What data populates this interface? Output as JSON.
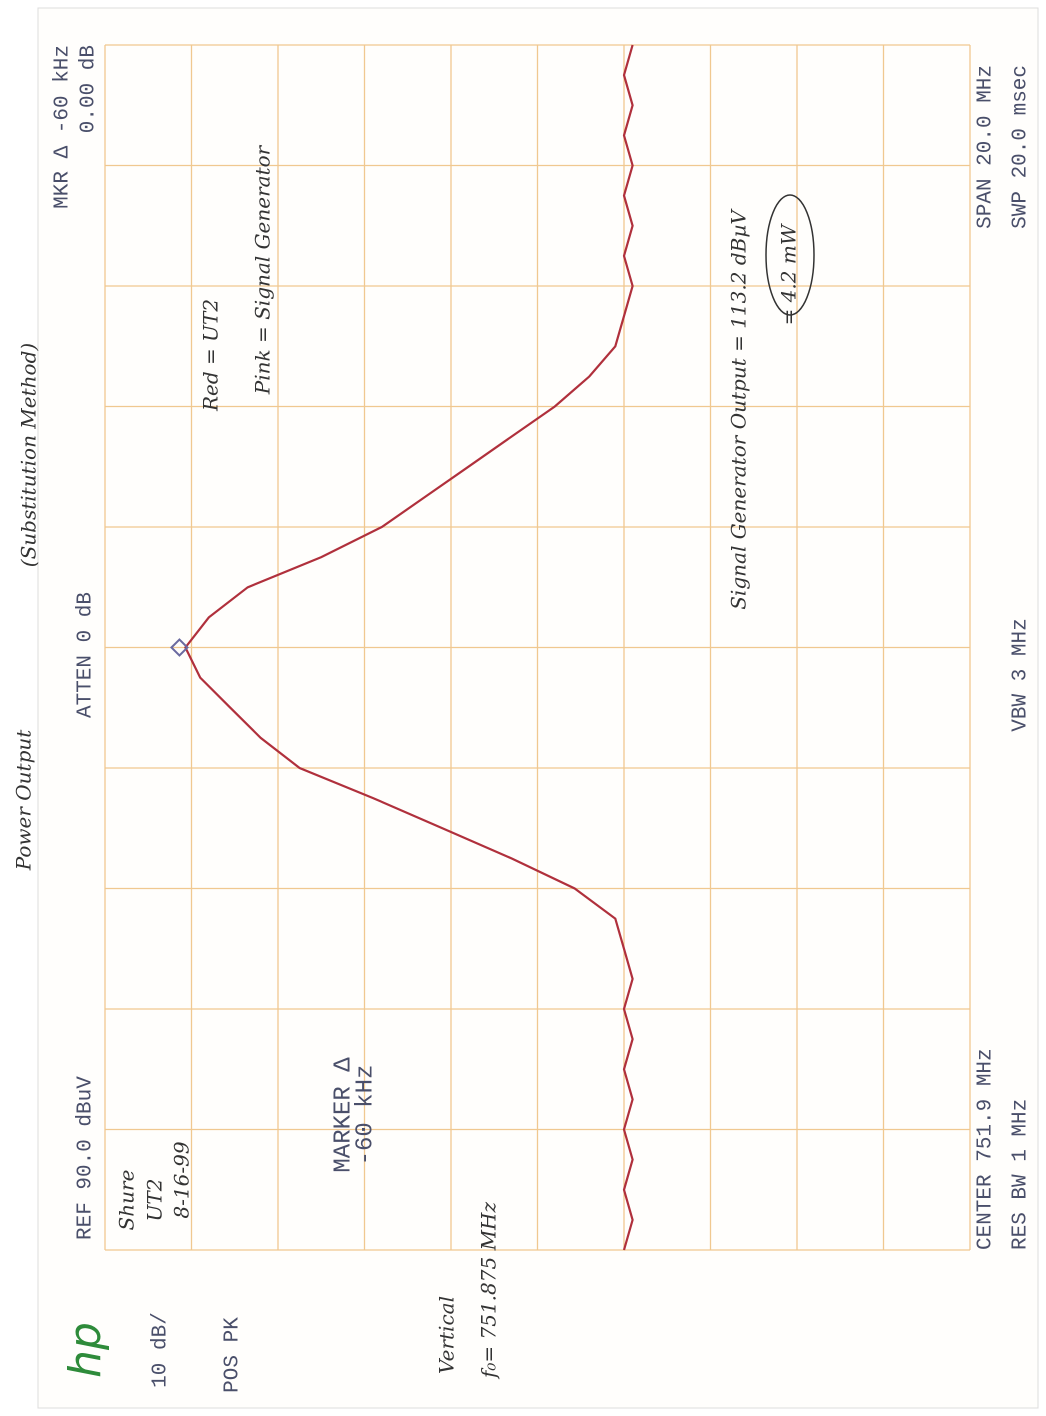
{
  "chart_data": {
    "type": "line",
    "title": "Power Output",
    "subtitle": "(Substitution Method)",
    "x": [
      741.9,
      742.4,
      742.9,
      743.4,
      743.9,
      744.4,
      744.9,
      745.4,
      745.9,
      746.4,
      746.9,
      747.4,
      747.9,
      748.4,
      748.9,
      749.4,
      749.9,
      750.4,
      750.9,
      751.4,
      751.9,
      752.4,
      752.9,
      753.4,
      753.9,
      754.4,
      754.9,
      755.4,
      755.9,
      756.4,
      756.9,
      757.4,
      757.9,
      758.4,
      758.9,
      759.4,
      759.9,
      760.4,
      760.9,
      761.4,
      761.9
    ],
    "series": [
      {
        "color": "#b0303c",
        "values": [
          30,
          29,
          30,
          29,
          30,
          29,
          30,
          29,
          30,
          29,
          30,
          31,
          35.7,
          43,
          51,
          59,
          67.5,
          72,
          75.5,
          79,
          80.7,
          78,
          73.5,
          65,
          58,
          53,
          48,
          43,
          38,
          34,
          31,
          30,
          29,
          30,
          29,
          30,
          29,
          30,
          29,
          30,
          29
        ]
      }
    ],
    "xlim": [
      741.9,
      761.9
    ],
    "ylim": [
      -10,
      90
    ],
    "grid": true,
    "grid_color": "#f0c890",
    "header": {
      "logo": "hp",
      "ref": "REF 90.0 dBuV",
      "scale": "10 dB/",
      "detector": "POS PK",
      "atten": "ATTEN 0 dB",
      "marker_delta": "MKR Δ -60 kHz",
      "marker_level": "0.00 dB"
    },
    "footer": {
      "center": "CENTER 751.9 MHz",
      "rbw": "RES BW 1 MHz",
      "vbw": "VBW 3 MHz",
      "span": "SPAN 20.0 MHz",
      "sweep": "SWP 20.0 msec"
    },
    "screen_marker": [
      "MARKER Δ",
      "-60 kHz"
    ],
    "notes": {
      "maker": "Shure",
      "model": "UT2",
      "date": "8-16-99",
      "red": "Red = UT2",
      "pink": "Pink = Signal Generator",
      "output": "Signal Generator Output = 113.2 dBµV",
      "power": "= 4.2 mW",
      "vertical": "Vertical",
      "f0": "f₀= 751.875 MHz"
    }
  }
}
